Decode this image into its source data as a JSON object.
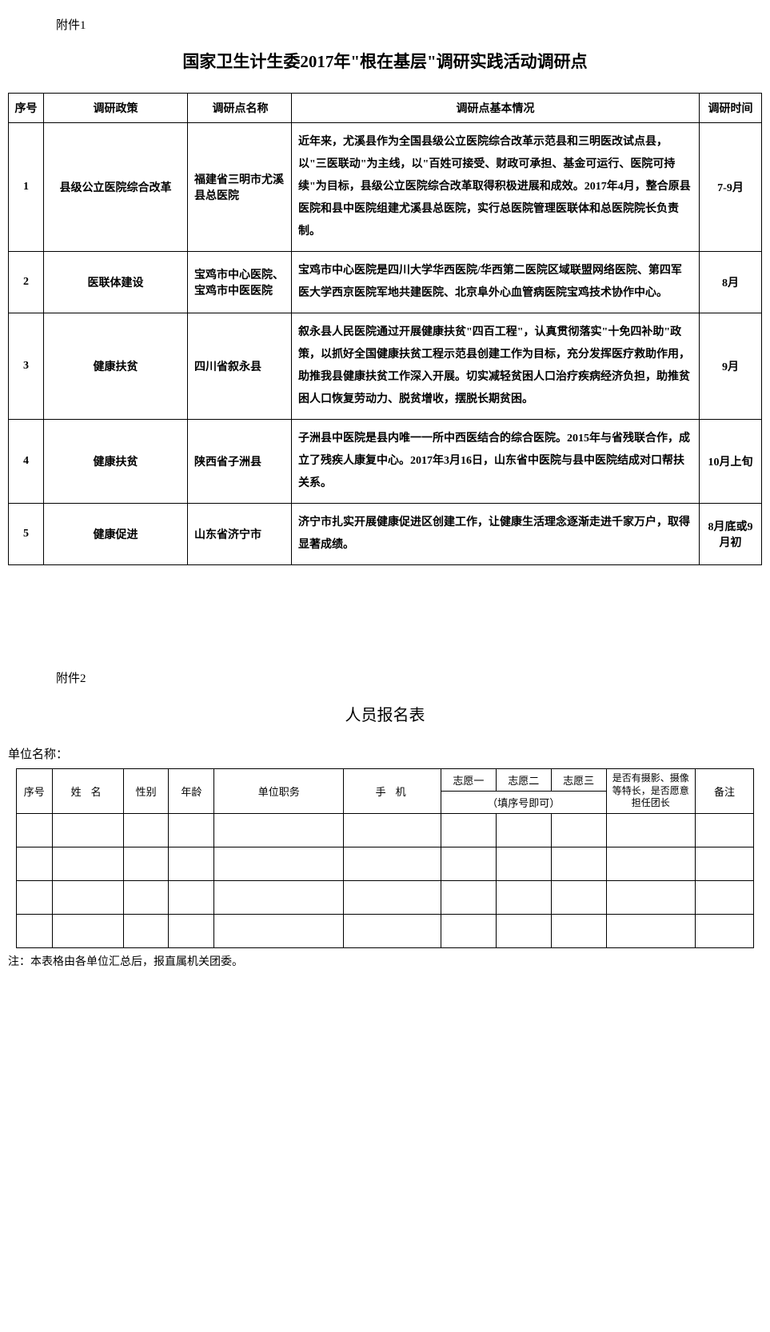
{
  "attachment1_label": "附件1",
  "title1": "国家卫生计生委2017年\"根在基层\"调研实践活动调研点",
  "table1": {
    "headers": {
      "seq": "序号",
      "policy": "调研政策",
      "site": "调研点名称",
      "desc": "调研点基本情况",
      "time": "调研时间"
    },
    "rows": [
      {
        "seq": "1",
        "policy": "县级公立医院综合改革",
        "site": "福建省三明市尤溪县总医院",
        "desc": "近年来，尤溪县作为全国县级公立医院综合改革示范县和三明医改试点县，以\"三医联动\"为主线，以\"百姓可接受、财政可承担、基金可运行、医院可持续\"为目标，县级公立医院综合改革取得积极进展和成效。2017年4月，整合原县医院和县中医院组建尤溪县总医院，实行总医院管理医联体和总医院院长负责制。",
        "time": "7-9月"
      },
      {
        "seq": "2",
        "policy": "医联体建设",
        "site": "宝鸡市中心医院、宝鸡市中医医院",
        "desc": "宝鸡市中心医院是四川大学华西医院/华西第二医院区域联盟网络医院、第四军医大学西京医院军地共建医院、北京阜外心血管病医院宝鸡技术协作中心。",
        "time": "8月"
      },
      {
        "seq": "3",
        "policy": "健康扶贫",
        "site": "四川省叙永县",
        "desc": "叙永县人民医院通过开展健康扶贫\"四百工程\"，认真贯彻落实\"十免四补助\"政策，以抓好全国健康扶贫工程示范县创建工作为目标，充分发挥医疗救助作用，助推我县健康扶贫工作深入开展。切实减轻贫困人口治疗疾病经济负担，助推贫困人口恢复劳动力、脱贫增收，摆脱长期贫困。",
        "time": "9月"
      },
      {
        "seq": "4",
        "policy": "健康扶贫",
        "site": "陕西省子洲县",
        "desc": "子洲县中医院是县内唯一一所中西医结合的综合医院。2015年与省残联合作，成立了残疾人康复中心。2017年3月16日，山东省中医院与县中医院结成对口帮扶关系。",
        "time": "10月上旬"
      },
      {
        "seq": "5",
        "policy": "健康促进",
        "site": "山东省济宁市",
        "desc": "济宁市扎实开展健康促进区创建工作，让健康生活理念逐渐走进千家万户，取得显著成绩。",
        "time": "8月底或9月初"
      }
    ]
  },
  "attachment2_label": "附件2",
  "title2": "人员报名表",
  "unit_label": "单位名称：",
  "table2": {
    "headers": {
      "seq": "序号",
      "name": "姓名",
      "sex": "性别",
      "age": "年龄",
      "post": "单位职务",
      "phone": "手机",
      "wish1": "志愿一",
      "wish2": "志愿二",
      "wish3": "志愿三",
      "wish_hint": "（填序号即可）",
      "special": "是否有摄影、摄像等特长，是否愿意担任团长",
      "note": "备注"
    },
    "blank_rows": 4
  },
  "footnote": "注：本表格由各单位汇总后，报直属机关团委。"
}
